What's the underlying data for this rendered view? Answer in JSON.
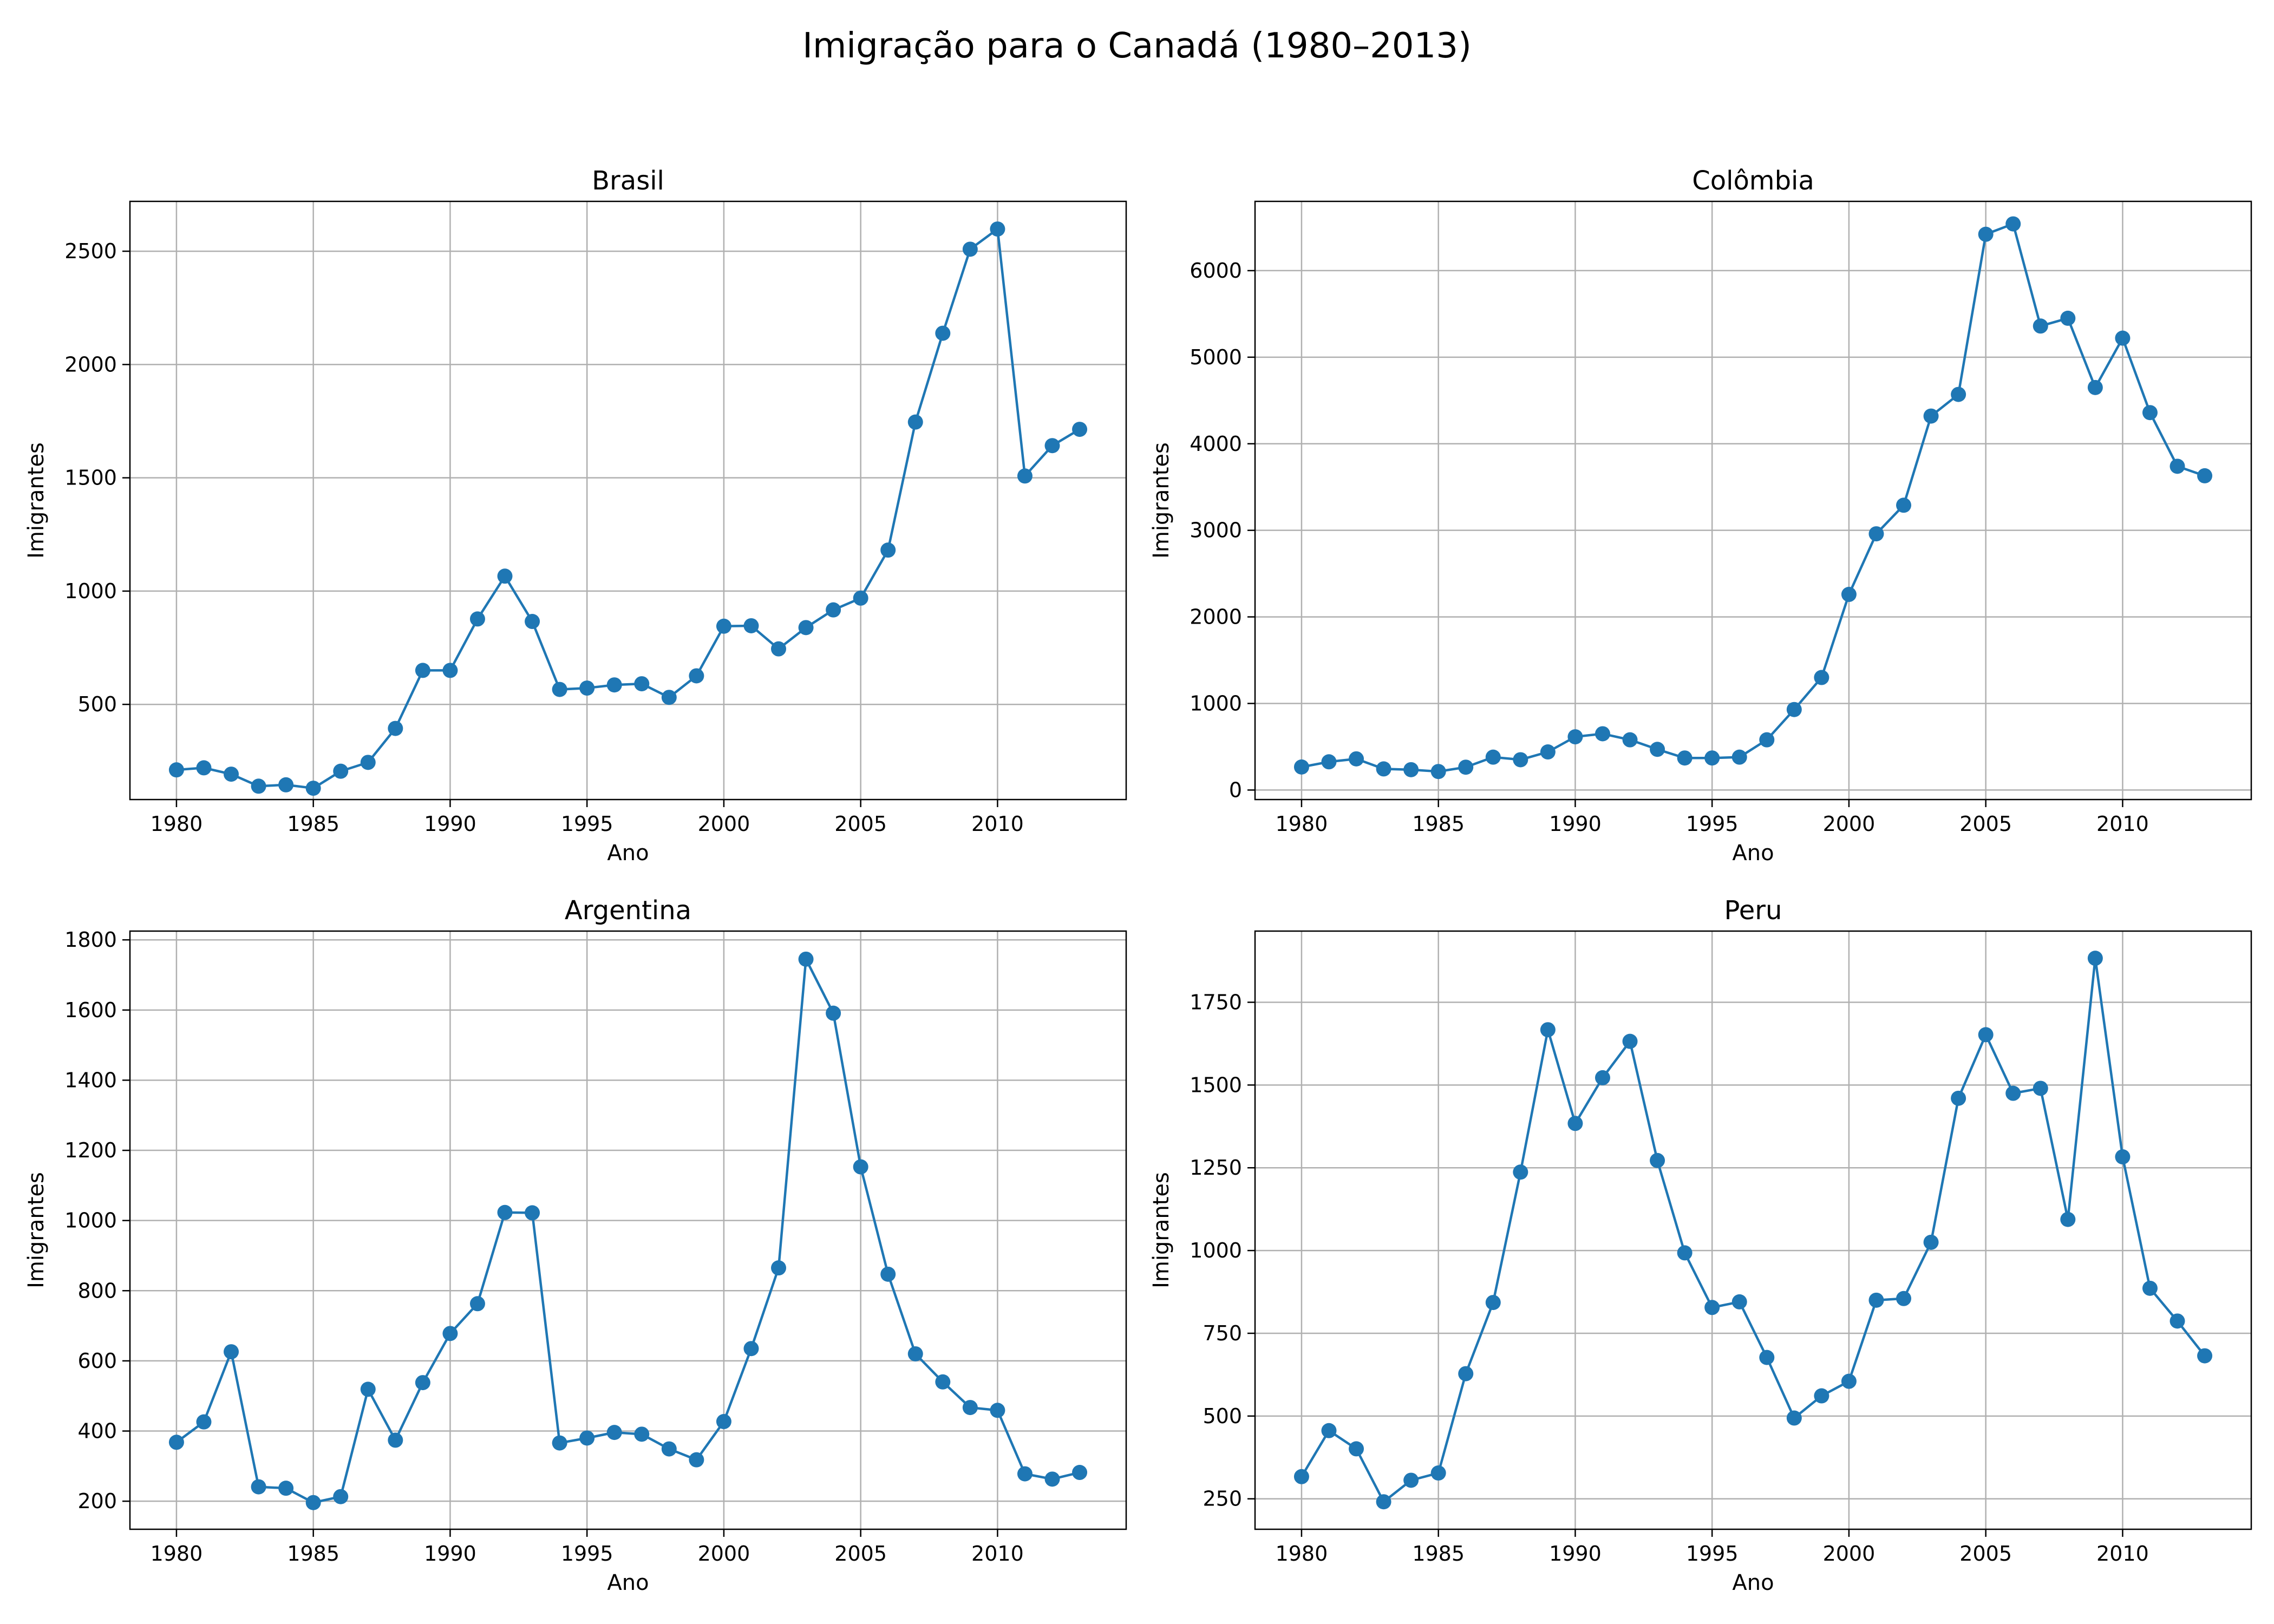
{
  "figure": {
    "title": "Imigração para o Canadá (1980–2013)"
  },
  "chart_data": [
    {
      "type": "line",
      "title": "Brasil",
      "xlabel": "Ano",
      "ylabel": "Imigrantes",
      "xlim": [
        1978.3,
        2014.7
      ],
      "ylim": [
        80,
        2720
      ],
      "xticks": [
        1980,
        1985,
        1990,
        1995,
        2000,
        2005,
        2010
      ],
      "yticks": [
        500,
        1000,
        1500,
        2000,
        2500
      ],
      "grid": true,
      "color": "#1f77b4",
      "x": [
        1980,
        1981,
        1982,
        1983,
        1984,
        1985,
        1986,
        1987,
        1988,
        1989,
        1990,
        1991,
        1992,
        1993,
        1994,
        1995,
        1996,
        1997,
        1998,
        1999,
        2000,
        2001,
        2002,
        2003,
        2004,
        2005,
        2006,
        2007,
        2008,
        2009,
        2010,
        2011,
        2012,
        2013
      ],
      "values": [
        211,
        220,
        192,
        139,
        145,
        130,
        205,
        244,
        394,
        650,
        650,
        877,
        1066,
        866,
        566,
        572,
        586,
        591,
        531,
        626,
        845,
        847,
        745,
        839,
        917,
        969,
        1181,
        1746,
        2138,
        2509,
        2598,
        1508,
        1642,
        1714
      ]
    },
    {
      "type": "line",
      "title": "Colômbia",
      "xlabel": "Ano",
      "ylabel": "Imigrantes",
      "xlim": [
        1978.3,
        2014.7
      ],
      "ylim": [
        -110,
        6800
      ],
      "xticks": [
        1980,
        1985,
        1990,
        1995,
        2000,
        2005,
        2010
      ],
      "yticks": [
        0,
        1000,
        2000,
        3000,
        4000,
        5000,
        6000
      ],
      "grid": true,
      "color": "#1f77b4",
      "x": [
        1980,
        1981,
        1982,
        1983,
        1984,
        1985,
        1986,
        1987,
        1988,
        1989,
        1990,
        1991,
        1992,
        1993,
        1994,
        1995,
        1996,
        1997,
        1998,
        1999,
        2000,
        2001,
        2002,
        2003,
        2004,
        2005,
        2006,
        2007,
        2008,
        2009,
        2010,
        2011,
        2012,
        2013
      ],
      "values": [
        266,
        326,
        360,
        244,
        235,
        214,
        264,
        380,
        350,
        440,
        615,
        650,
        580,
        470,
        370,
        370,
        380,
        580,
        930,
        1300,
        2260,
        2960,
        3290,
        4320,
        4570,
        6420,
        6540,
        5360,
        5450,
        4650,
        5220,
        4360,
        3740,
        3630
      ]
    },
    {
      "type": "line",
      "title": "Argentina",
      "xlabel": "Ano",
      "ylabel": "Imigrantes",
      "xlim": [
        1978.3,
        2014.7
      ],
      "ylim": [
        120,
        1825
      ],
      "xticks": [
        1980,
        1985,
        1990,
        1995,
        2000,
        2005,
        2010
      ],
      "yticks": [
        200,
        400,
        600,
        800,
        1000,
        1200,
        1400,
        1600,
        1800
      ],
      "grid": true,
      "color": "#1f77b4",
      "x": [
        1980,
        1981,
        1982,
        1983,
        1984,
        1985,
        1986,
        1987,
        1988,
        1989,
        1990,
        1991,
        1992,
        1993,
        1994,
        1995,
        1996,
        1997,
        1998,
        1999,
        2000,
        2001,
        2002,
        2003,
        2004,
        2005,
        2006,
        2007,
        2008,
        2009,
        2010,
        2011,
        2012,
        2013
      ],
      "values": [
        368,
        426,
        626,
        241,
        237,
        196,
        213,
        519,
        374,
        538,
        678,
        763,
        1023,
        1022,
        366,
        380,
        396,
        391,
        349,
        318,
        427,
        635,
        865,
        1745,
        1591,
        1153,
        847,
        620,
        540,
        467,
        459,
        278,
        263,
        282
      ]
    },
    {
      "type": "line",
      "title": "Peru",
      "xlabel": "Ano",
      "ylabel": "Imigrantes",
      "xlim": [
        1978.3,
        2014.7
      ],
      "ylim": [
        158,
        1965
      ],
      "xticks": [
        1980,
        1985,
        1990,
        1995,
        2000,
        2005,
        2010
      ],
      "yticks": [
        250,
        500,
        750,
        1000,
        1250,
        1500,
        1750
      ],
      "grid": true,
      "color": "#1f77b4",
      "x": [
        1980,
        1981,
        1982,
        1983,
        1984,
        1985,
        1986,
        1987,
        1988,
        1989,
        1990,
        1991,
        1992,
        1993,
        1994,
        1995,
        1996,
        1997,
        1998,
        1999,
        2000,
        2001,
        2002,
        2003,
        2004,
        2005,
        2006,
        2007,
        2008,
        2009,
        2010,
        2011,
        2012,
        2013
      ],
      "values": [
        317,
        456,
        401,
        241,
        306,
        328,
        628,
        843,
        1237,
        1667,
        1384,
        1522,
        1632,
        1272,
        993,
        828,
        845,
        677,
        494,
        561,
        605,
        850,
        855,
        1025,
        1460,
        1652,
        1475,
        1490,
        1094,
        1883,
        1283,
        886,
        787,
        682
      ]
    }
  ]
}
